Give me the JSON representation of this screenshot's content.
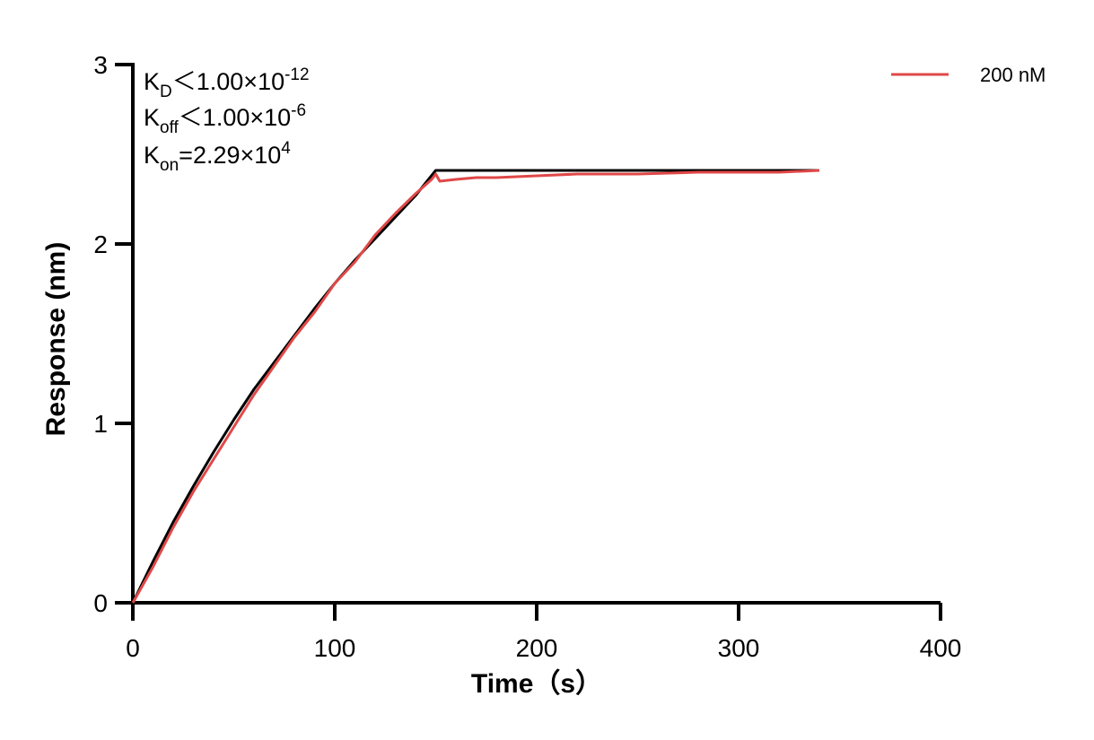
{
  "chart_data": {
    "type": "line",
    "xlabel": "Time（s）",
    "ylabel": "Response (nm)",
    "xlim": [
      0,
      400
    ],
    "ylim": [
      0,
      3
    ],
    "xticks": [
      0,
      100,
      200,
      300,
      400
    ],
    "yticks": [
      0,
      1,
      2,
      3
    ],
    "grid": false,
    "legend_position": "top-right",
    "annotations": {
      "kd": {
        "base": "K",
        "sub": "D",
        "rel": "＜",
        "mantissa": "1.00×10",
        "exp": "-12"
      },
      "koff": {
        "base": "K",
        "sub": "off",
        "rel": "＜",
        "mantissa": "1.00×10",
        "exp": "-6"
      },
      "kon": {
        "base": "K",
        "sub": "on",
        "rel": "=",
        "mantissa": "2.29×10",
        "exp": "4"
      }
    },
    "series": [
      {
        "name": "200 nM",
        "color": "#e04848",
        "x": [
          0,
          5,
          10,
          20,
          30,
          40,
          50,
          60,
          70,
          80,
          90,
          100,
          110,
          120,
          130,
          140,
          148,
          150,
          152,
          160,
          170,
          180,
          200,
          220,
          250,
          280,
          300,
          320,
          340
        ],
        "y": [
          0,
          0.1,
          0.2,
          0.42,
          0.62,
          0.8,
          0.98,
          1.16,
          1.32,
          1.48,
          1.62,
          1.78,
          1.9,
          2.05,
          2.17,
          2.28,
          2.36,
          2.39,
          2.35,
          2.36,
          2.37,
          2.37,
          2.38,
          2.39,
          2.39,
          2.4,
          2.4,
          2.4,
          2.41
        ]
      },
      {
        "name": "",
        "color": "#000000",
        "x": [
          0,
          10,
          20,
          30,
          40,
          50,
          60,
          70,
          80,
          90,
          100,
          110,
          120,
          130,
          140,
          150,
          200,
          250,
          300,
          340
        ],
        "y": [
          0,
          0.23,
          0.45,
          0.65,
          0.84,
          1.02,
          1.19,
          1.34,
          1.49,
          1.64,
          1.78,
          1.91,
          2.03,
          2.15,
          2.27,
          2.41,
          2.41,
          2.41,
          2.41,
          2.41
        ]
      }
    ]
  }
}
